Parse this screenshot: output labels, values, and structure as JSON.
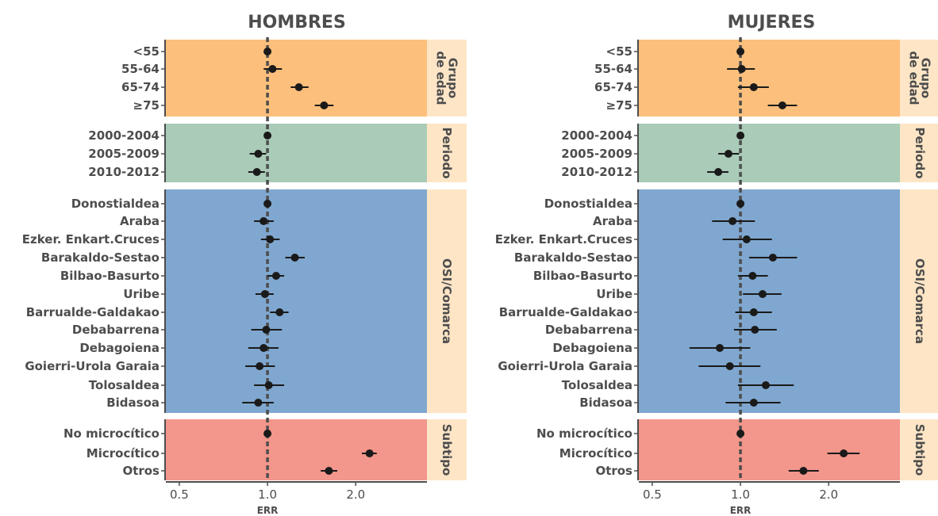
{
  "colors": {
    "age": "#FDBF7C",
    "period": "#A9CBB7",
    "region": "#7FA7CF",
    "subtype": "#F3968B",
    "strip": "#FDE5C6",
    "point": "#1a1a1a",
    "text": "#4d4d4d",
    "reference": "#4d4d4d"
  },
  "chart_data": {
    "type": "forest",
    "x_scale": "log",
    "xlim": [
      0.45,
      3.5
    ],
    "xticks": [
      0.5,
      1.0,
      2.0
    ],
    "xtick_labels": [
      "0.5",
      "1.0",
      "2.0"
    ],
    "xlabel": "ERR",
    "reference_line": 1.0,
    "panels": [
      {
        "title": "HOMBRES",
        "groups": [
          {
            "label": "Grupo de edad",
            "rows": [
              {
                "label": "<55",
                "est": 1.0,
                "lo": 1.0,
                "hi": 1.0
              },
              {
                "label": "55-64",
                "est": 1.04,
                "lo": 0.97,
                "hi": 1.12
              },
              {
                "label": "65-74",
                "est": 1.28,
                "lo": 1.2,
                "hi": 1.38
              },
              {
                "label": "≥75",
                "est": 1.56,
                "lo": 1.45,
                "hi": 1.68
              }
            ]
          },
          {
            "label": "Periodo",
            "rows": [
              {
                "label": "2000-2004",
                "est": 1.0,
                "lo": 1.0,
                "hi": 1.0
              },
              {
                "label": "2005-2009",
                "est": 0.93,
                "lo": 0.87,
                "hi": 0.99
              },
              {
                "label": "2010-2012",
                "est": 0.92,
                "lo": 0.86,
                "hi": 0.98
              }
            ]
          },
          {
            "label": "OSI/Comarca",
            "rows": [
              {
                "label": "Donostialdea",
                "est": 1.0,
                "lo": 1.0,
                "hi": 1.0
              },
              {
                "label": "Araba",
                "est": 0.97,
                "lo": 0.9,
                "hi": 1.05
              },
              {
                "label": "Ezker. Enkart.Cruces",
                "est": 1.02,
                "lo": 0.95,
                "hi": 1.1
              },
              {
                "label": "Barakaldo-Sestao",
                "est": 1.24,
                "lo": 1.15,
                "hi": 1.34
              },
              {
                "label": "Bilbao-Basurto",
                "est": 1.07,
                "lo": 1.0,
                "hi": 1.14
              },
              {
                "label": "Uribe",
                "est": 0.98,
                "lo": 0.91,
                "hi": 1.05
              },
              {
                "label": "Barrualde-Galdakao",
                "est": 1.1,
                "lo": 1.02,
                "hi": 1.18
              },
              {
                "label": "Debabarrena",
                "est": 0.99,
                "lo": 0.88,
                "hi": 1.12
              },
              {
                "label": "Debagoiena",
                "est": 0.97,
                "lo": 0.86,
                "hi": 1.09
              },
              {
                "label": "Goierri-Urola Garaia",
                "est": 0.94,
                "lo": 0.84,
                "hi": 1.06
              },
              {
                "label": "Tolosaldea",
                "est": 1.01,
                "lo": 0.9,
                "hi": 1.14
              },
              {
                "label": "Bidasoa",
                "est": 0.93,
                "lo": 0.82,
                "hi": 1.05
              }
            ]
          },
          {
            "label": "Subtipo",
            "rows": [
              {
                "label": "No microcítico",
                "est": 1.0,
                "lo": 1.0,
                "hi": 1.0
              },
              {
                "label": "Microcítico",
                "est": 2.23,
                "lo": 2.1,
                "hi": 2.36
              },
              {
                "label": "Otros",
                "est": 1.62,
                "lo": 1.52,
                "hi": 1.73
              }
            ]
          }
        ]
      },
      {
        "title": "MUJERES",
        "groups": [
          {
            "label": "Grupo de edad",
            "rows": [
              {
                "label": "<55",
                "est": 1.0,
                "lo": 1.0,
                "hi": 1.0
              },
              {
                "label": "55-64",
                "est": 1.01,
                "lo": 0.9,
                "hi": 1.12
              },
              {
                "label": "65-74",
                "est": 1.11,
                "lo": 0.98,
                "hi": 1.25
              },
              {
                "label": "≥75",
                "est": 1.39,
                "lo": 1.24,
                "hi": 1.56
              }
            ]
          },
          {
            "label": "Periodo",
            "rows": [
              {
                "label": "2000-2004",
                "est": 1.0,
                "lo": 1.0,
                "hi": 1.0
              },
              {
                "label": "2005-2009",
                "est": 0.91,
                "lo": 0.84,
                "hi": 0.99
              },
              {
                "label": "2010-2012",
                "est": 0.84,
                "lo": 0.77,
                "hi": 0.91
              }
            ]
          },
          {
            "label": "OSI/Comarca",
            "rows": [
              {
                "label": "Donostialdea",
                "est": 1.0,
                "lo": 1.0,
                "hi": 1.0
              },
              {
                "label": "Araba",
                "est": 0.94,
                "lo": 0.8,
                "hi": 1.12
              },
              {
                "label": "Ezker. Enkart.Cruces",
                "est": 1.05,
                "lo": 0.87,
                "hi": 1.28
              },
              {
                "label": "Barakaldo-Sestao",
                "est": 1.29,
                "lo": 1.07,
                "hi": 1.56
              },
              {
                "label": "Bilbao-Basurto",
                "est": 1.1,
                "lo": 0.98,
                "hi": 1.24
              },
              {
                "label": "Uribe",
                "est": 1.19,
                "lo": 1.02,
                "hi": 1.38
              },
              {
                "label": "Barrualde-Galdakao",
                "est": 1.11,
                "lo": 0.96,
                "hi": 1.28
              },
              {
                "label": "Debabarrena",
                "est": 1.12,
                "lo": 0.95,
                "hi": 1.33
              },
              {
                "label": "Debagoiena",
                "est": 0.85,
                "lo": 0.67,
                "hi": 1.08
              },
              {
                "label": "Goierri-Urola Garaia",
                "est": 0.92,
                "lo": 0.72,
                "hi": 1.17
              },
              {
                "label": "Tolosaldea",
                "est": 1.22,
                "lo": 0.98,
                "hi": 1.52
              },
              {
                "label": "Bidasoa",
                "est": 1.11,
                "lo": 0.89,
                "hi": 1.37
              }
            ]
          },
          {
            "label": "Subtipo",
            "rows": [
              {
                "label": "No microcítico",
                "est": 1.0,
                "lo": 1.0,
                "hi": 1.0
              },
              {
                "label": "Microcítico",
                "est": 2.25,
                "lo": 1.98,
                "hi": 2.55
              },
              {
                "label": "Otros",
                "est": 1.64,
                "lo": 1.46,
                "hi": 1.85
              }
            ]
          }
        ]
      }
    ]
  }
}
